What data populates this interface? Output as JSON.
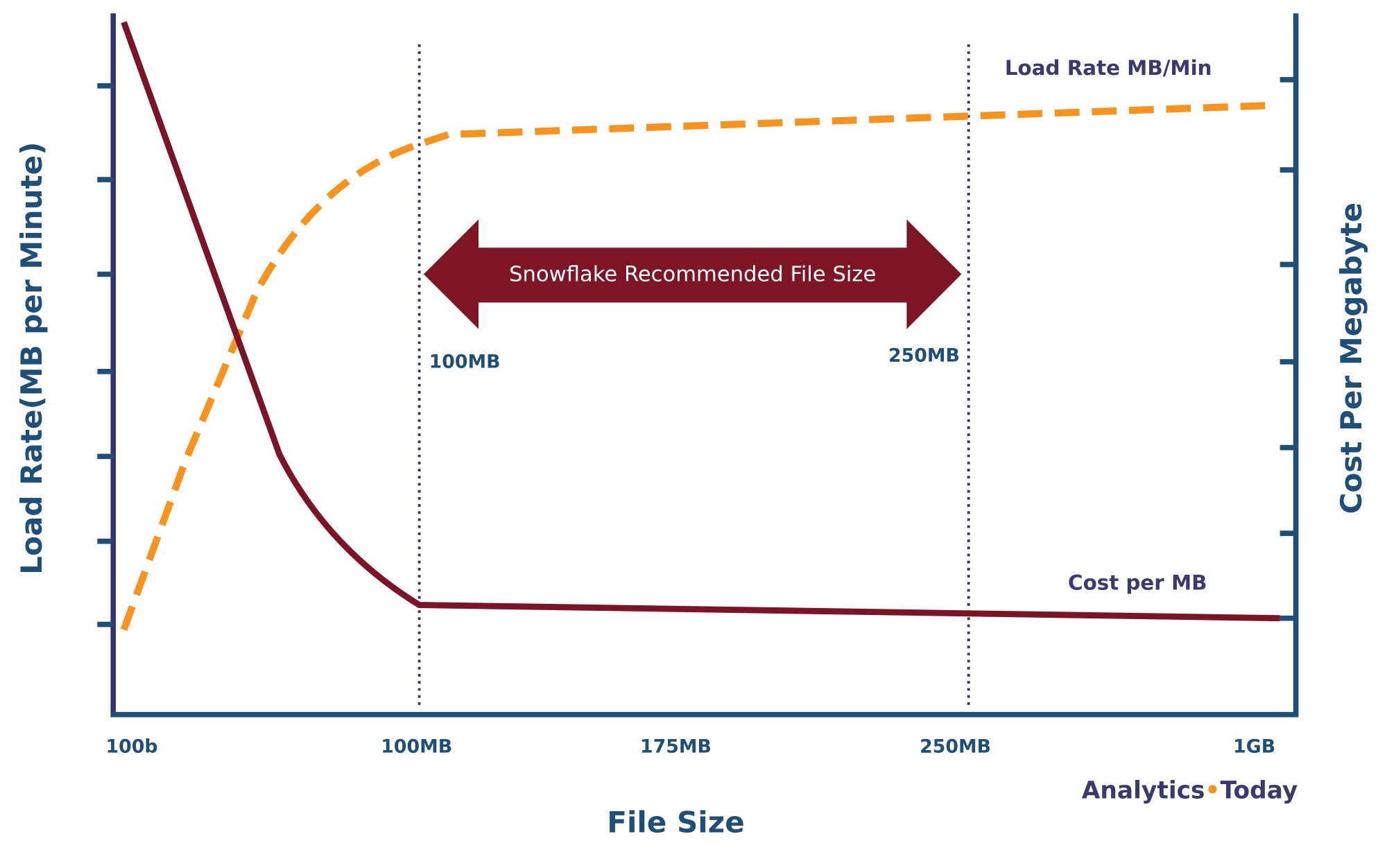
{
  "chart_data": {
    "type": "line",
    "x_label": "File Size",
    "y_label": "Load Rate(MB per Minute)",
    "y2_label": "Cost Per Megabyte",
    "categories": [
      "100b",
      "100MB",
      "175MB",
      "250MB",
      "1GB"
    ],
    "series": [
      {
        "name": "Load Rate MB/Min",
        "color": "#f7931e"
      },
      {
        "name": "Cost per MB",
        "color": "#7b1426"
      }
    ],
    "annotations": {
      "arrow_text": "Snowflake Recommended File Size",
      "start_label": "100MB",
      "end_label": "250MB"
    },
    "brand": [
      "Analytics",
      "•",
      "Today"
    ]
  }
}
